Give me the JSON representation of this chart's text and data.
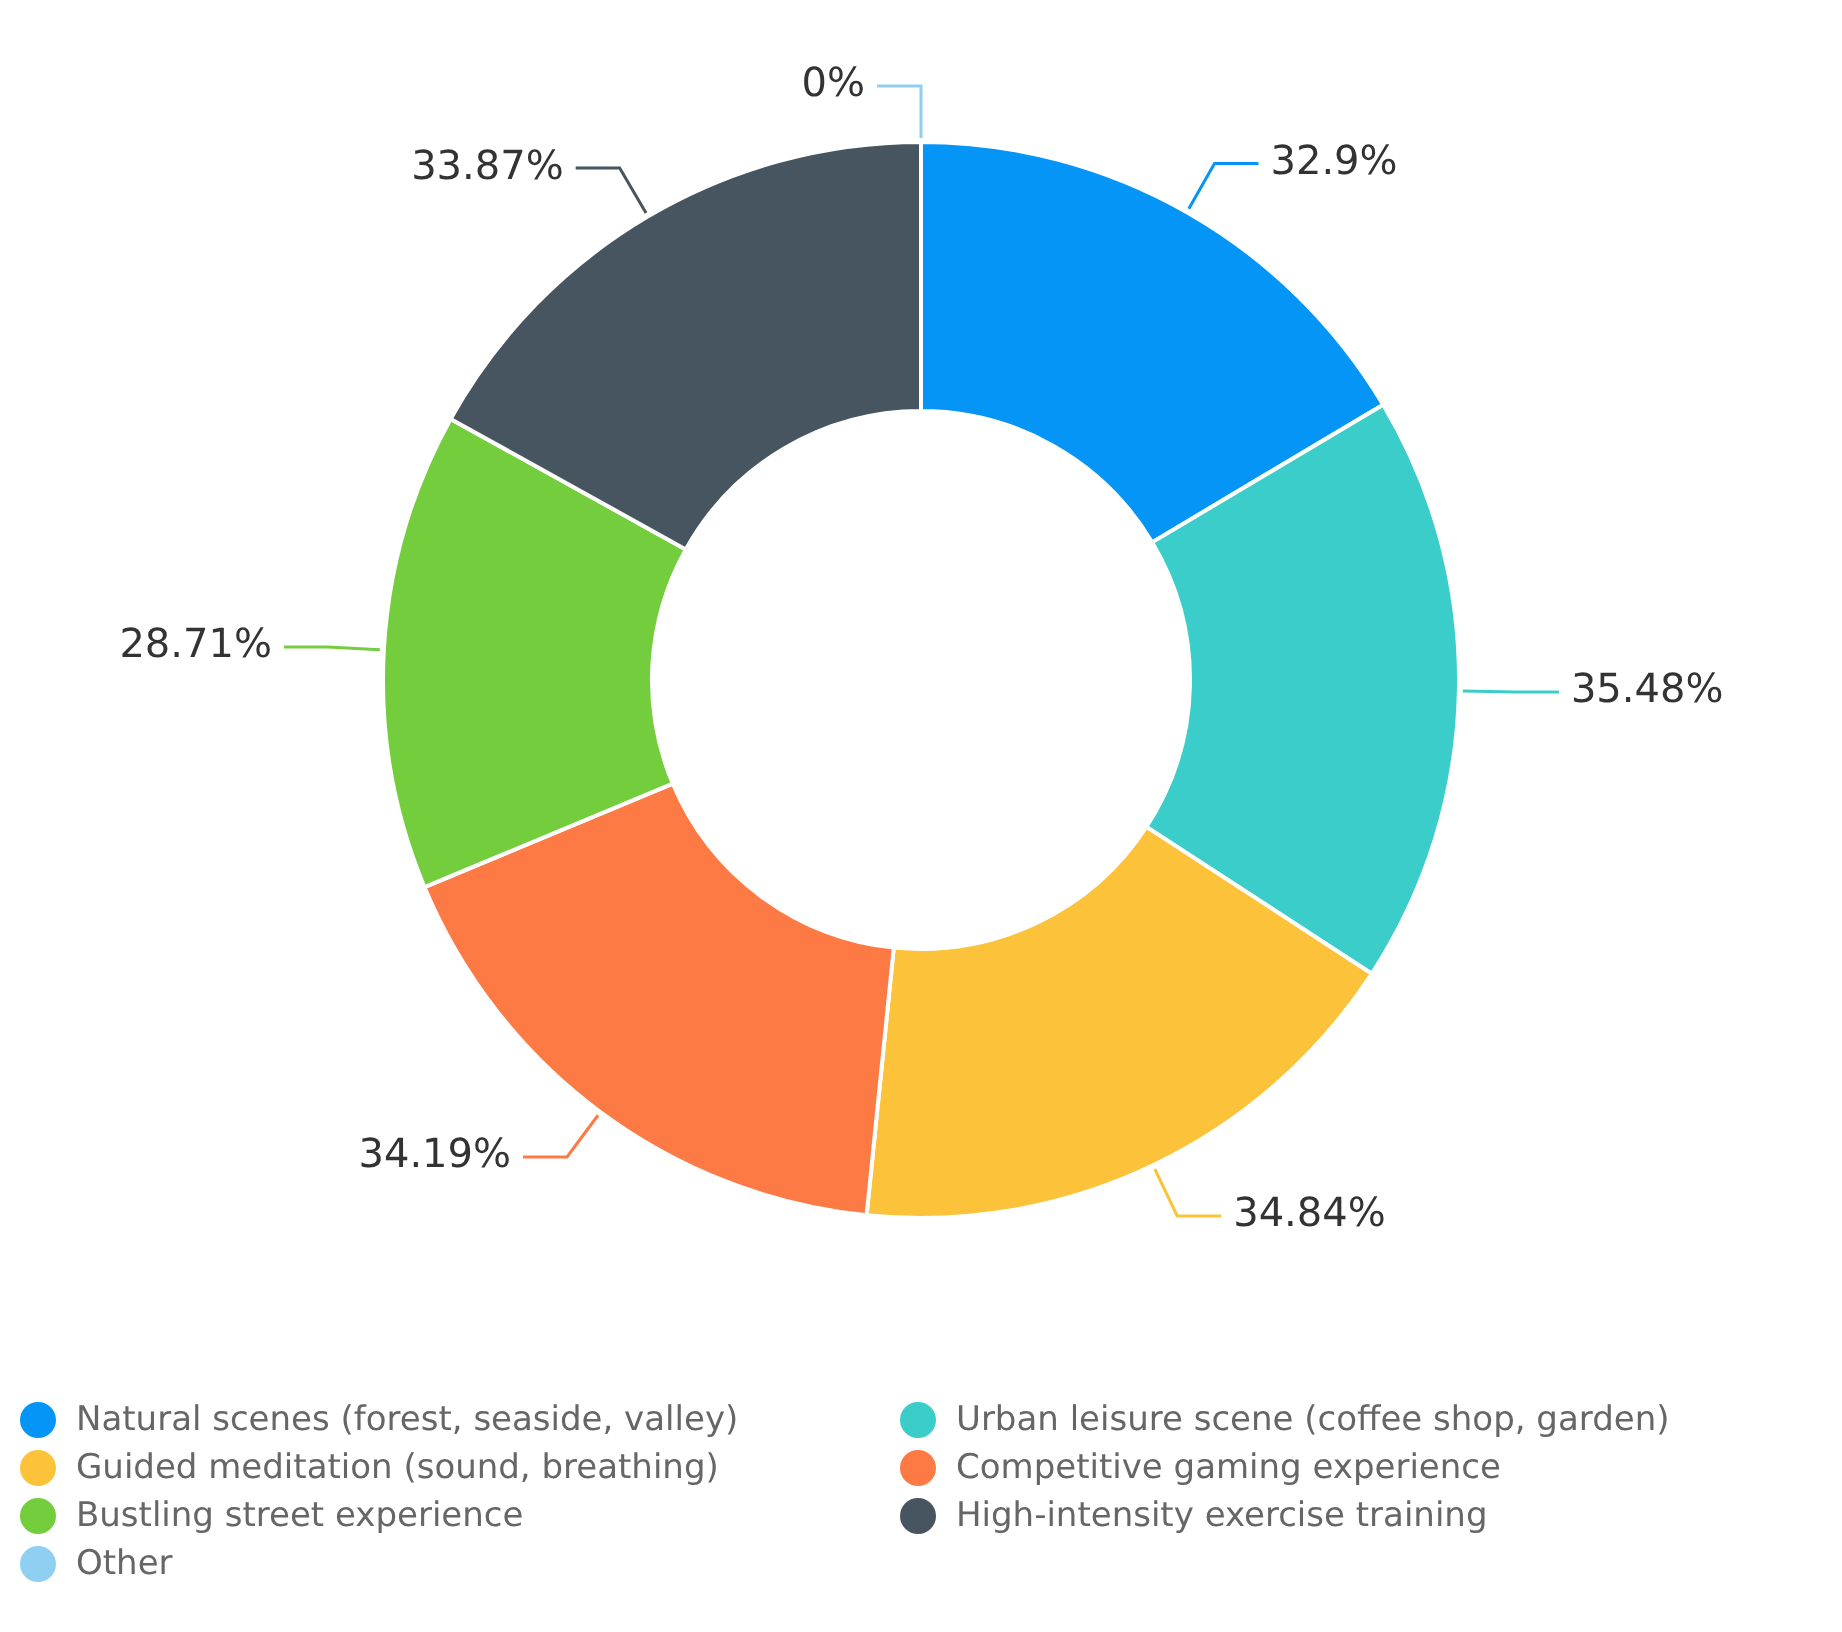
{
  "chart_data": {
    "type": "donut",
    "categories": [
      "Natural scenes (forest, seaside, valley)",
      "Urban leisure scene (coffee shop, garden)",
      "Guided meditation (sound, breathing)",
      "Competitive gaming experience",
      "Bustling street experience",
      "High-intensity exercise training",
      "Other"
    ],
    "values": [
      32.9,
      35.48,
      34.84,
      34.19,
      28.71,
      33.87,
      0
    ],
    "value_labels": [
      "32.9%",
      "35.48%",
      "34.84%",
      "34.19%",
      "28.71%",
      "33.87%",
      "0%"
    ],
    "colors": [
      "#0595f7",
      "#3acdc9",
      "#fcc23a",
      "#fd7a45",
      "#74cd3d",
      "#46555f",
      "#8fd0f2"
    ],
    "legend": "bottom"
  }
}
